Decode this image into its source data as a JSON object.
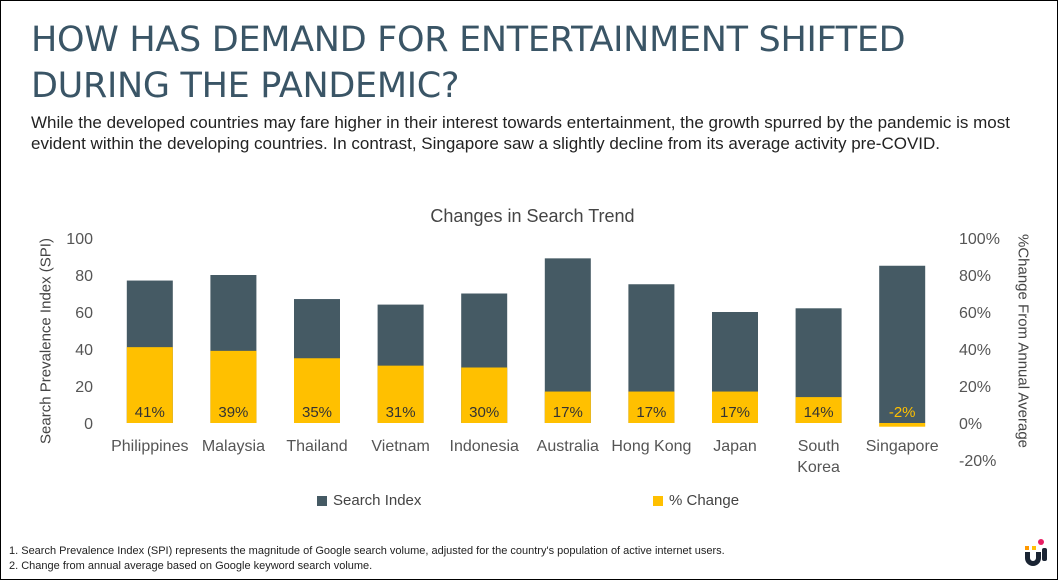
{
  "header": {
    "title_line1": "HOW HAS DEMAND FOR ENTERTAINMENT SHIFTED",
    "title_line2": "DURING THE PANDEMIC?",
    "subtitle": "While the developed countries may fare higher in their interest towards entertainment, the growth spurred by the pandemic is most evident within the developing countries. In contrast, Singapore saw a slightly decline from its average activity pre-COVID."
  },
  "chart_data": {
    "type": "bar",
    "title": "Changes in Search Trend",
    "categories": [
      {
        "line1": "Philippines",
        "line2": ""
      },
      {
        "line1": "Malaysia",
        "line2": ""
      },
      {
        "line1": "Thailand",
        "line2": ""
      },
      {
        "line1": "Vietnam",
        "line2": ""
      },
      {
        "line1": "Indonesia",
        "line2": ""
      },
      {
        "line1": "Australia",
        "line2": ""
      },
      {
        "line1": "Hong Kong",
        "line2": ""
      },
      {
        "line1": "Japan",
        "line2": ""
      },
      {
        "line1": "South",
        "line2": "Korea"
      },
      {
        "line1": "Singapore",
        "line2": ""
      }
    ],
    "series": [
      {
        "name": "Search Index",
        "axis": "left",
        "color": "#455a64",
        "values": [
          77,
          80,
          67,
          64,
          70,
          89,
          75,
          60,
          62,
          85
        ]
      },
      {
        "name": "% Change",
        "axis": "right",
        "color": "#ffc000",
        "values": [
          41,
          39,
          35,
          31,
          30,
          17,
          17,
          17,
          14,
          -2
        ],
        "labels": [
          "41%",
          "39%",
          "35%",
          "31%",
          "30%",
          "17%",
          "17%",
          "17%",
          "14%",
          "-2%"
        ]
      }
    ],
    "ylabel": "Search Prevalence Index (SPI)",
    "y2label": "%Change From Annual Average",
    "ylim": [
      0,
      100
    ],
    "y2lim": [
      -20,
      100
    ],
    "yticks": [
      "100",
      "80",
      "60",
      "40",
      "20",
      "0"
    ],
    "y2ticks": [
      "100%",
      "80%",
      "60%",
      "40%",
      "20%",
      "0%",
      "-20%"
    ],
    "legend_position": "bottom"
  },
  "footnotes": [
    "1.  Search Prevalence Index (SPI) represents the magnitude of Google search volume, adjusted for the country's population of active internet users.",
    "2.  Change from annual average based on Google keyword search volume."
  ],
  "logo_icon": "brand-logo-icon"
}
